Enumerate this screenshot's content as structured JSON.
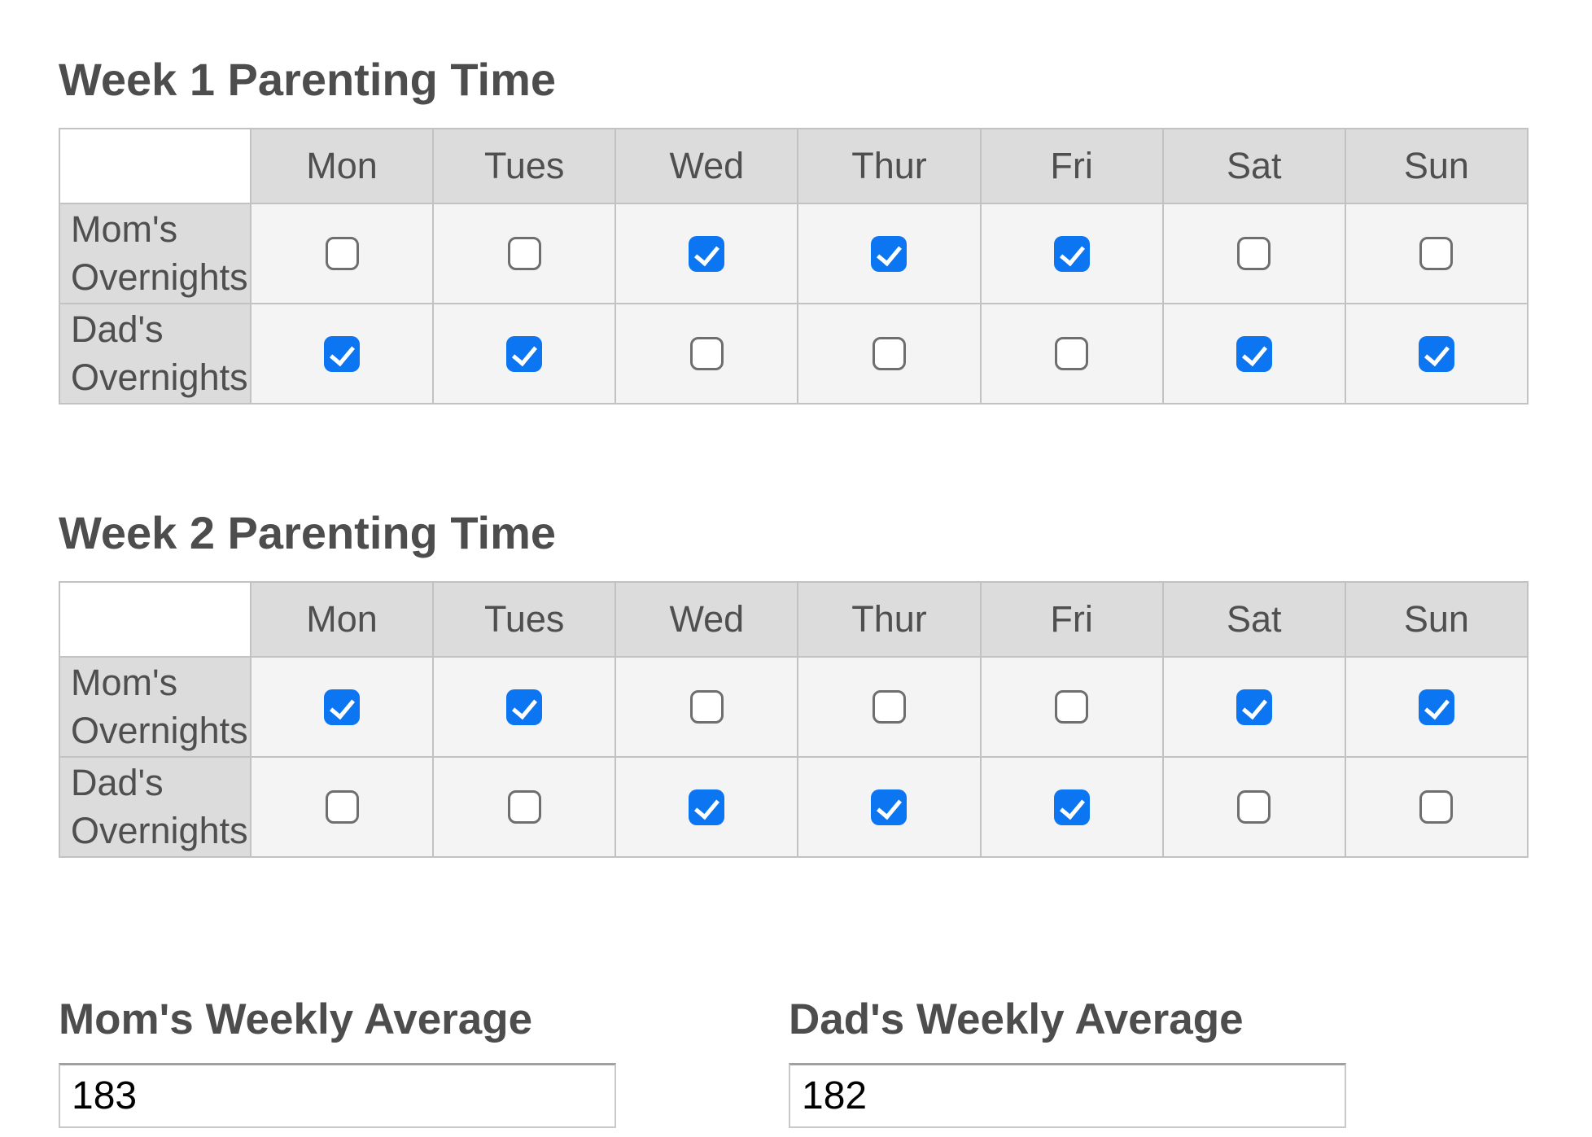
{
  "colors": {
    "checked_blue": "#0c76f2",
    "header_bg": "#dcdcdc",
    "cell_bg": "#f4f4f4",
    "table_border": "#c2c2c2",
    "heading_text": "#4d4d4d",
    "unchecked_border": "#6e6e6e"
  },
  "days": [
    "Mon",
    "Tues",
    "Wed",
    "Thur",
    "Fri",
    "Sat",
    "Sun"
  ],
  "week1": {
    "title": "Week 1 Parenting Time",
    "mom": {
      "label": "Mom's Overnights",
      "checks": [
        false,
        false,
        true,
        true,
        true,
        false,
        false
      ]
    },
    "dad": {
      "label": "Dad's Overnights",
      "checks": [
        true,
        true,
        false,
        false,
        false,
        true,
        true
      ]
    }
  },
  "week2": {
    "title": "Week 2 Parenting Time",
    "mom": {
      "label": "Mom's Overnights",
      "checks": [
        true,
        true,
        false,
        false,
        false,
        true,
        true
      ]
    },
    "dad": {
      "label": "Dad's Overnights",
      "checks": [
        false,
        false,
        true,
        true,
        true,
        false,
        false
      ]
    }
  },
  "averages": {
    "mom": {
      "label": "Mom's Weekly Average",
      "value": "183"
    },
    "dad": {
      "label": "Dad's Weekly Average",
      "value": "182"
    }
  }
}
